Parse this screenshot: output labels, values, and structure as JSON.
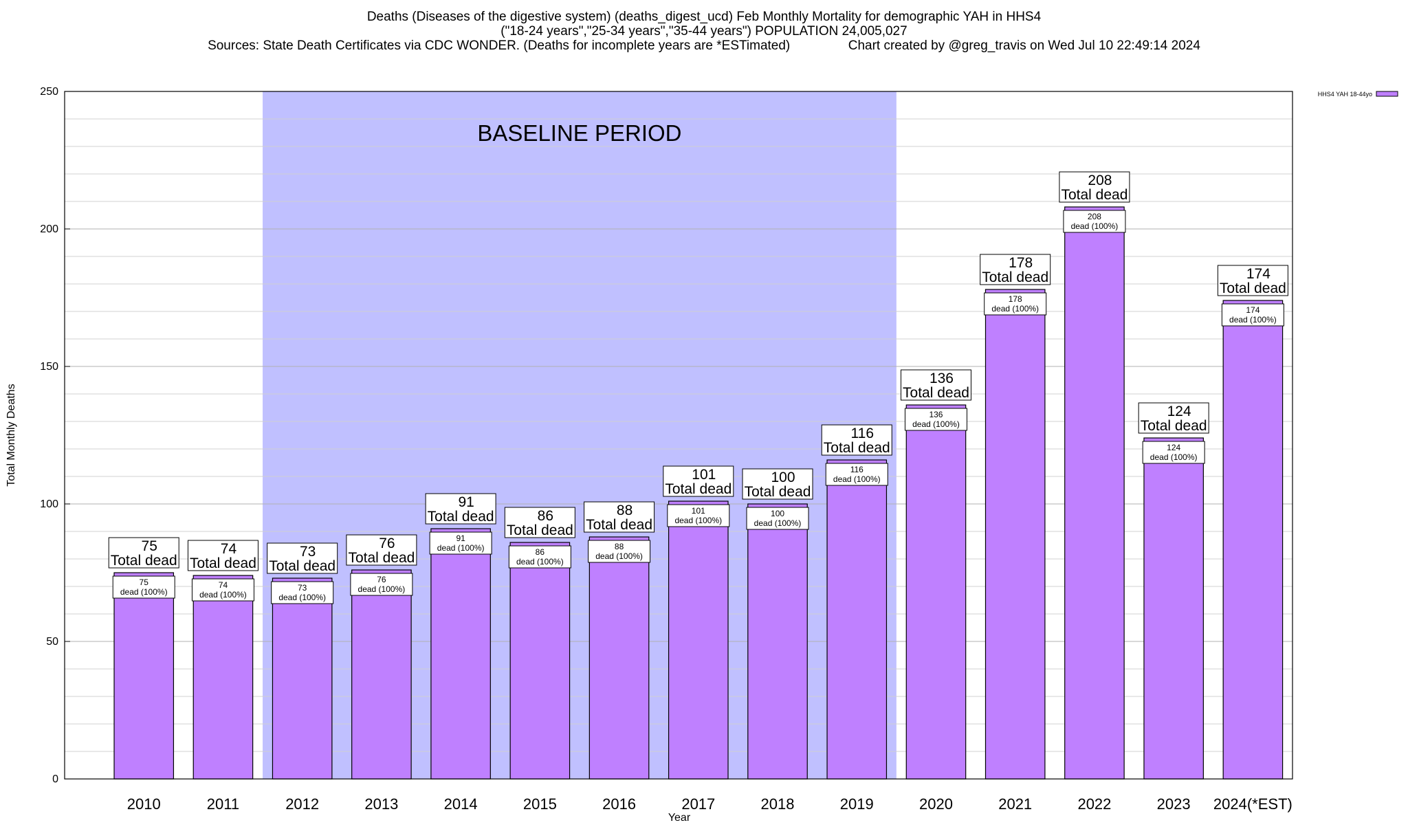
{
  "header": {
    "line1": "Deaths (Diseases of the digestive system) (deaths_digest_ucd) Feb Monthly Mortality for demographic YAH in HHS4",
    "line2": "(\"18-24 years\",\"25-34 years\",\"35-44 years\") POPULATION 24,005,027",
    "line3": "Sources: State Death Certificates via CDC WONDER. (Deaths for incomplete years are *ESTimated)                Chart created by @greg_travis on Wed Jul 10 22:49:14 2024"
  },
  "chart_data": {
    "type": "bar",
    "xlabel": "Year",
    "ylabel": "Total Monthly Deaths",
    "ylim": [
      0,
      250
    ],
    "yticks": [
      0,
      50,
      100,
      150,
      200,
      250
    ],
    "grid": true,
    "legend_position": "top-right",
    "categories": [
      "2010",
      "2011",
      "2012",
      "2013",
      "2014",
      "2015",
      "2016",
      "2017",
      "2018",
      "2019",
      "2020",
      "2021",
      "2022",
      "2023",
      "2024(*EST)"
    ],
    "series": [
      {
        "name": "HHS4 YAH 18-44yo",
        "color": "#bf80ff",
        "values": [
          75,
          74,
          73,
          76,
          91,
          86,
          88,
          101,
          100,
          116,
          136,
          178,
          208,
          124,
          174
        ]
      }
    ],
    "total_label": "Total dead",
    "bar_label_suffix": "dead (100%)",
    "baseline_period": {
      "label": "BASELINE PERIOD",
      "start": "2012",
      "end": "2019",
      "color": "#c0c0ff"
    }
  }
}
